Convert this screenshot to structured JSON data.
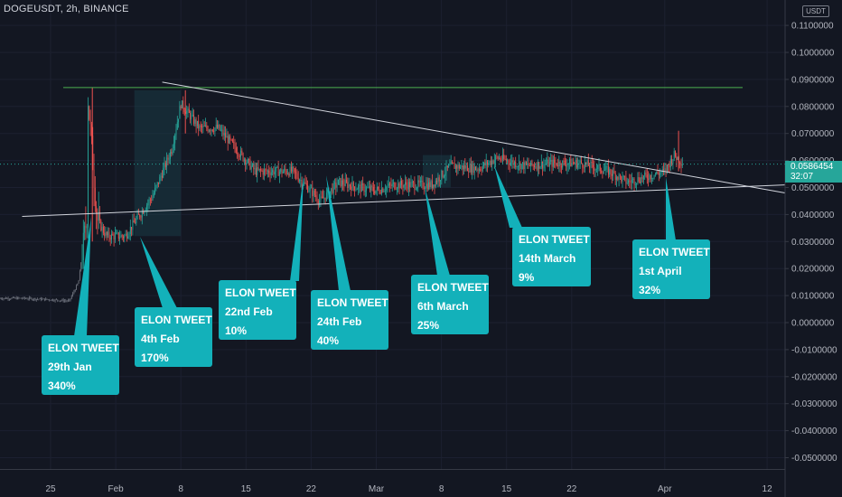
{
  "header": {
    "symbol_line": "DOGEUSDT, 2h, BINANCE"
  },
  "price_axis": {
    "currency_badge": "USDT",
    "ticks": [
      "0.1100000",
      "0.1000000",
      "0.0900000",
      "0.0800000",
      "0.0700000",
      "0.0600000",
      "0.0500000",
      "0.0400000",
      "0.0300000",
      "0.0200000",
      "0.0100000",
      "0.0000000",
      "-0.0100000",
      "-0.0200000",
      "-0.0300000",
      "-0.0400000",
      "-0.0500000"
    ],
    "current_price": "0.0586454",
    "countdown": "32:07"
  },
  "time_axis": {
    "ticks": [
      "25",
      "Feb",
      "8",
      "15",
      "22",
      "Mar",
      "8",
      "15",
      "22",
      "Apr",
      "12"
    ]
  },
  "callouts": [
    {
      "title": "ELON TWEET",
      "date": "29th Jan",
      "pct": "340%"
    },
    {
      "title": "ELON TWEET",
      "date": "4th Feb",
      "pct": "170%"
    },
    {
      "title": "ELON TWEET",
      "date": "22nd Feb",
      "pct": "10%"
    },
    {
      "title": "ELON TWEET",
      "date": "24th Feb",
      "pct": "40%"
    },
    {
      "title": "ELON TWEET",
      "date": "6th March",
      "pct": "25%"
    },
    {
      "title": "ELON TWEET",
      "date": "14th March",
      "pct": "9%"
    },
    {
      "title": "ELON TWEET",
      "date": "1st April",
      "pct": "32%"
    }
  ],
  "colors": {
    "background": "#131722",
    "up": "#26a69a",
    "down": "#ef5350",
    "callout": "#13b1ba",
    "resistance": "#4caf50"
  },
  "chart_data": {
    "type": "candlestick",
    "title": "",
    "xlabel": "",
    "ylabel": "",
    "ylim": [
      -0.055,
      0.118
    ],
    "x_ticks": [
      "25",
      "Feb",
      "8",
      "15",
      "22",
      "Mar",
      "8",
      "15",
      "22",
      "Apr",
      "12"
    ],
    "series": [
      {
        "name": "",
        "points": [
          [
            "Jan 22",
            0.009
          ],
          [
            "Jan 25",
            0.0085
          ],
          [
            "Jan 27",
            0.008
          ],
          [
            "Jan 28",
            0.015
          ],
          [
            "Jan 29",
            0.042
          ],
          [
            "Jan 29 peak",
            0.084
          ],
          [
            "Jan 30",
            0.038
          ],
          [
            "Jan 31",
            0.032
          ],
          [
            "Feb 2",
            0.032
          ],
          [
            "Feb 3",
            0.037
          ],
          [
            "Feb 5",
            0.047
          ],
          [
            "Feb 7",
            0.064
          ],
          [
            "Feb 8",
            0.081
          ],
          [
            "Feb 10",
            0.072
          ],
          [
            "Feb 12",
            0.072
          ],
          [
            "Feb 14",
            0.064
          ],
          [
            "Feb 16",
            0.056
          ],
          [
            "Feb 18",
            0.056
          ],
          [
            "Feb 20",
            0.056
          ],
          [
            "Feb 23",
            0.045
          ],
          [
            "Feb 25",
            0.052
          ],
          [
            "Feb 27",
            0.05
          ],
          [
            "Mar 1",
            0.049
          ],
          [
            "Mar 3",
            0.051
          ],
          [
            "Mar 5",
            0.051
          ],
          [
            "Mar 7",
            0.051
          ],
          [
            "Mar 9",
            0.058
          ],
          [
            "Mar 12",
            0.057
          ],
          [
            "Mar 14",
            0.061
          ],
          [
            "Mar 17",
            0.058
          ],
          [
            "Mar 20",
            0.059
          ],
          [
            "Mar 23",
            0.059
          ],
          [
            "Mar 26",
            0.056
          ],
          [
            "Mar 28",
            0.052
          ],
          [
            "Mar 30",
            0.054
          ],
          [
            "Apr 1",
            0.056
          ],
          [
            "Apr 2",
            0.062
          ],
          [
            "Apr 3",
            0.059
          ]
        ]
      }
    ],
    "annotations": {
      "resistance_price": 0.087,
      "current_price": 0.0586454,
      "upper_trendline": [
        [
          "Feb 6",
          0.089
        ],
        [
          "Apr 16",
          0.053
        ]
      ],
      "lower_trendline": [
        [
          "Jan 20",
          0.0393
        ],
        [
          "Apr 16",
          0.057
        ]
      ],
      "highlight_zones": [
        [
          "Feb 3",
          "Feb 8",
          0.032,
          0.086
        ],
        [
          "Mar 6",
          "Mar 9",
          0.05,
          0.062
        ]
      ]
    },
    "grid": true,
    "legend": "none"
  }
}
